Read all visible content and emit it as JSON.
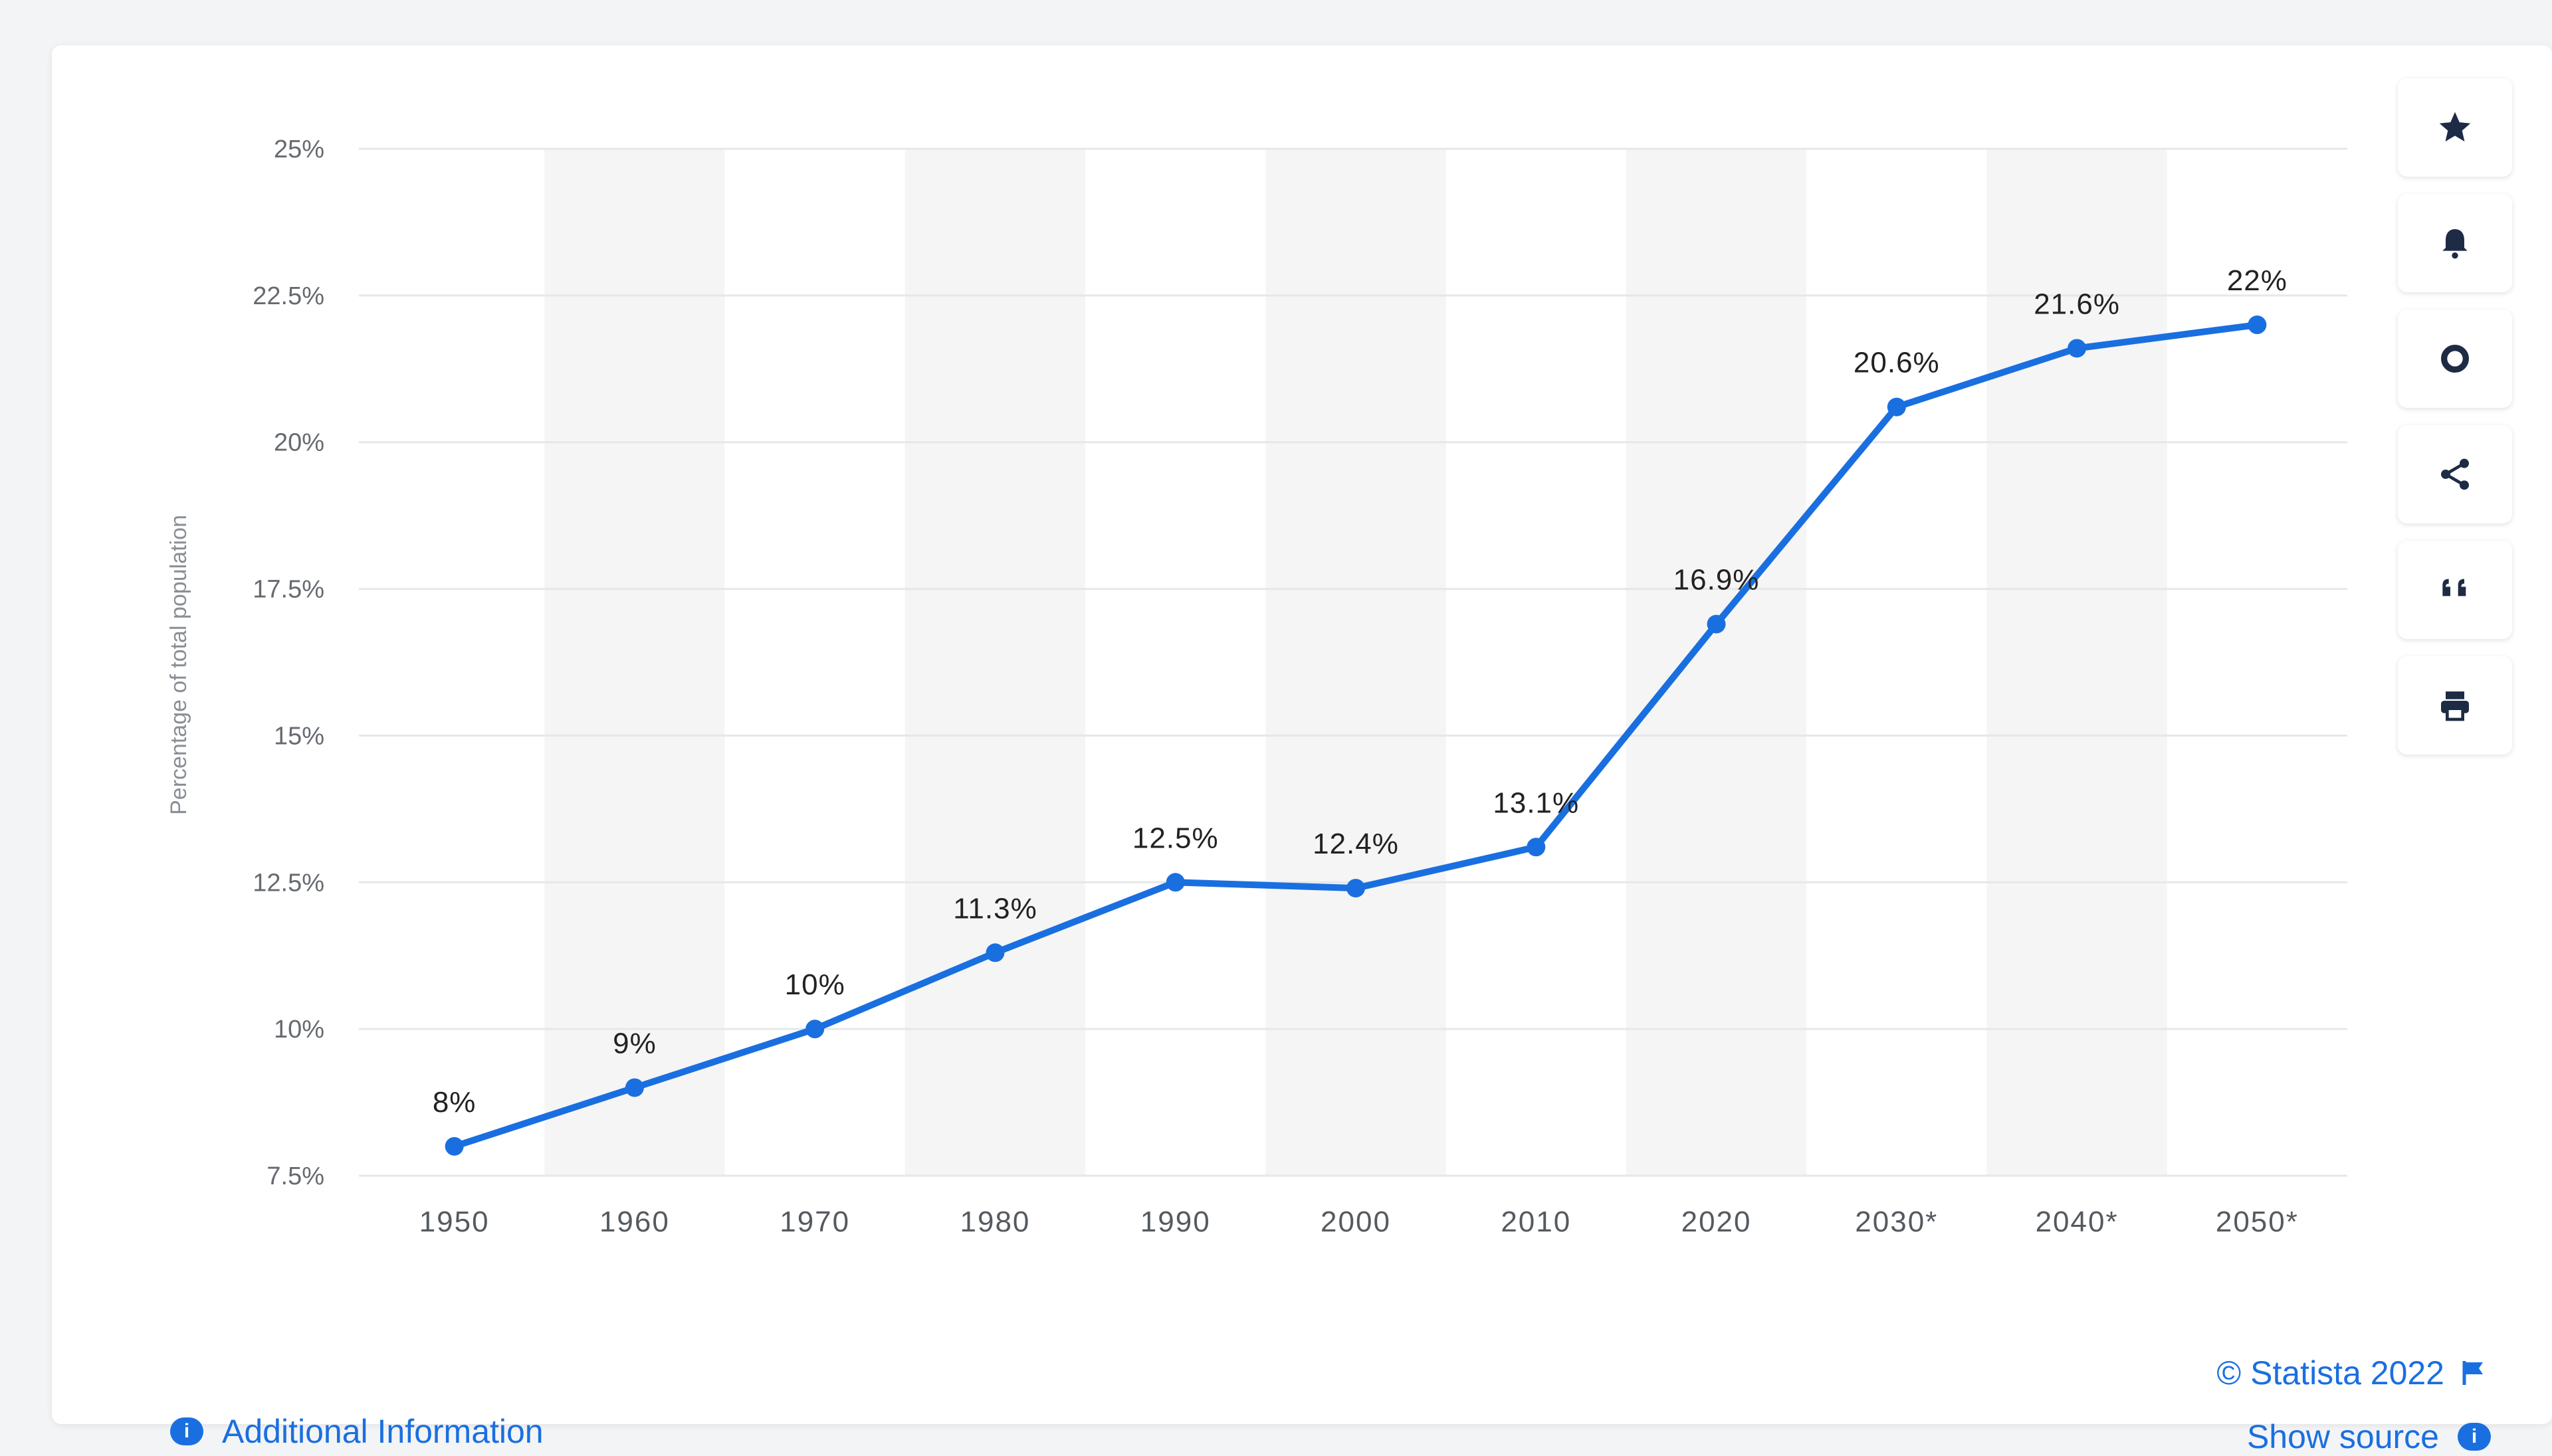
{
  "chart_data": {
    "type": "line",
    "categories": [
      "1950",
      "1960",
      "1970",
      "1980",
      "1990",
      "2000",
      "2010",
      "2020",
      "2030*",
      "2040*",
      "2050*"
    ],
    "values": [
      8,
      9,
      10,
      11.3,
      12.5,
      12.4,
      13.1,
      16.9,
      20.6,
      21.6,
      22
    ],
    "data_labels": [
      "8%",
      "9%",
      "10%",
      "11.3%",
      "12.5%",
      "12.4%",
      "13.1%",
      "16.9%",
      "20.6%",
      "21.6%",
      "22%"
    ],
    "ylabel": "Percentage of total population",
    "xlabel": "",
    "ylim": [
      7.5,
      25
    ],
    "yticks": [
      7.5,
      10,
      12.5,
      15,
      17.5,
      20,
      22.5,
      25
    ],
    "ytick_labels": [
      "7.5%",
      "10%",
      "12.5%",
      "15%",
      "17.5%",
      "20%",
      "22.5%",
      "25%"
    ],
    "grid": true,
    "alternating_column_shading": true,
    "line_color": "#1a6fe0",
    "legend": "none"
  },
  "toolbar": {
    "icons": [
      "star-icon",
      "bell-icon",
      "gear-icon",
      "share-icon",
      "quote-icon",
      "print-icon"
    ]
  },
  "footer": {
    "additional_info": "Additional Information",
    "info_icon_glyph": "i",
    "copyright": "© Statista 2022",
    "show_source": "Show source",
    "source_icon_glyph": "i"
  },
  "colors": {
    "accent": "#1a6fe0",
    "toolbar_icon": "#1e2b45",
    "shade": "#f5f5f6",
    "grid": "#e6e7e9"
  }
}
